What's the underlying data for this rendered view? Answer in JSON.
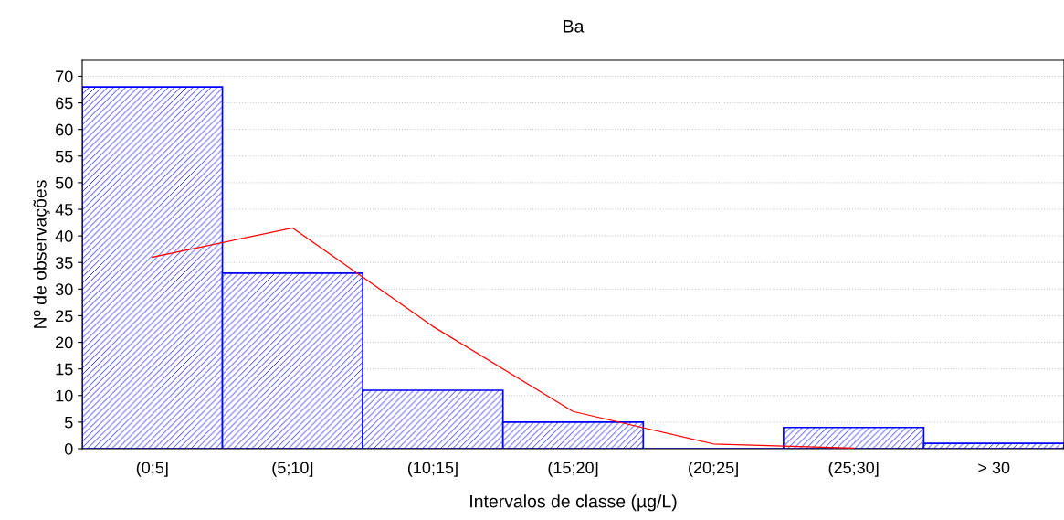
{
  "chart_data": {
    "type": "bar",
    "title": "Ba",
    "xlabel": "Intervalos de classe (µg/L)",
    "ylabel": "Nº de observações",
    "categories": [
      "(0;5]",
      "(5;10]",
      "(10;15]",
      "(15;20]",
      "(20;25]",
      "(25;30]",
      "> 30"
    ],
    "series": [
      {
        "color": "#0000ff",
        "values": [
          68,
          33,
          11,
          5,
          0,
          4,
          1
        ]
      },
      {
        "type": "line",
        "color": "#ff0000",
        "values": [
          36,
          41.5,
          23,
          7,
          0.9,
          0.1,
          null
        ]
      }
    ],
    "ylim": [
      0,
      73
    ],
    "yticks": [
      0,
      5,
      10,
      15,
      20,
      25,
      30,
      35,
      40,
      45,
      50,
      55,
      60,
      65,
      70
    ],
    "grid": "y"
  }
}
